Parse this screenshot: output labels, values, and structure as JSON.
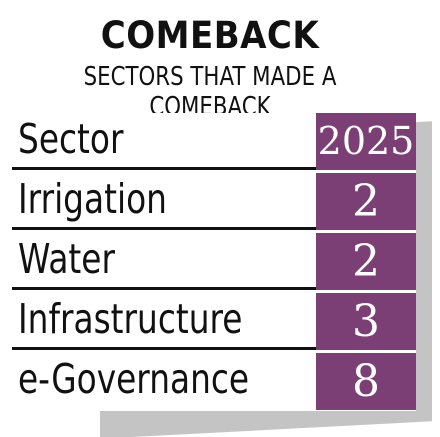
{
  "header": {
    "title": "COMEBACK",
    "subtitle": "SECTORS THAT MADE A COMEBACK"
  },
  "colors": {
    "accent": "#7c3f75",
    "shadow": "#c4c4c4"
  },
  "chart_data": {
    "type": "table",
    "title": "COMEBACK",
    "subtitle": "SECTORS THAT MADE A COMEBACK",
    "columns": [
      "Sector",
      "2025"
    ],
    "rows": [
      {
        "sector": "Irrigation",
        "value": "2"
      },
      {
        "sector": "Water",
        "value": "2"
      },
      {
        "sector": "Infrastructure",
        "value": "3"
      },
      {
        "sector": "e-Governance",
        "value": "8"
      }
    ]
  }
}
